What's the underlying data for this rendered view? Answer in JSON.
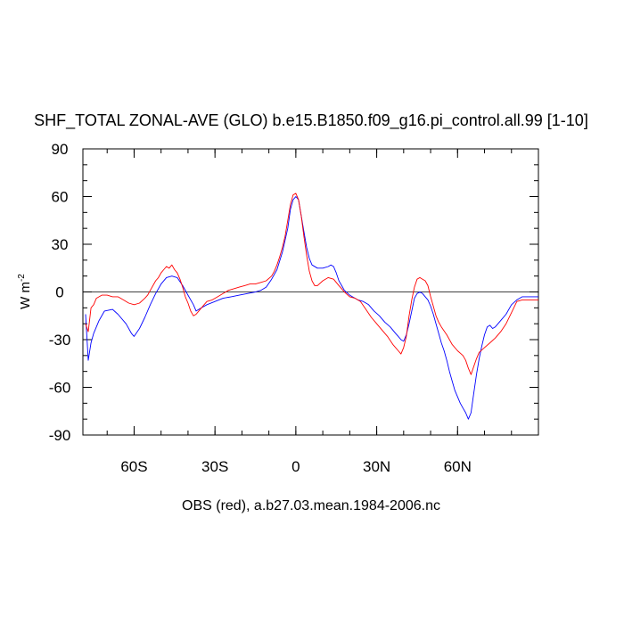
{
  "chart_data": {
    "type": "line",
    "title": "SHF_TOTAL ZONAL-AVE (GLO) b.e15.B1850.f09_g16.pi_control.all.99 [1-10]",
    "subtitle": "OBS (red), a.b27.03.mean.1984-2006.nc",
    "ylabel": "W m",
    "ylabel_sup": "-2",
    "xlabel": "",
    "xlim": [
      -79,
      90
    ],
    "ylim": [
      -90,
      90
    ],
    "x_ticks": [
      {
        "value": -60,
        "label": "60S"
      },
      {
        "value": -30,
        "label": "30S"
      },
      {
        "value": 0,
        "label": "0"
      },
      {
        "value": 30,
        "label": "30N"
      },
      {
        "value": 60,
        "label": "60N"
      }
    ],
    "y_ticks": [
      {
        "value": 90,
        "label": "90"
      },
      {
        "value": 60,
        "label": "60"
      },
      {
        "value": 30,
        "label": "30"
      },
      {
        "value": 0,
        "label": "0"
      },
      {
        "value": -30,
        "label": "-30"
      },
      {
        "value": -60,
        "label": "-60"
      },
      {
        "value": -90,
        "label": "-90"
      }
    ],
    "zero_line": true,
    "grid": false,
    "series": [
      {
        "color": "#0000ff",
        "points": [
          [
            -78,
            -14
          ],
          [
            -77,
            -43
          ],
          [
            -76,
            -32
          ],
          [
            -75,
            -26
          ],
          [
            -73,
            -18
          ],
          [
            -71,
            -12
          ],
          [
            -68,
            -11
          ],
          [
            -66,
            -14
          ],
          [
            -63,
            -20
          ],
          [
            -61,
            -26
          ],
          [
            -60,
            -28
          ],
          [
            -58,
            -23
          ],
          [
            -56,
            -16
          ],
          [
            -54,
            -8
          ],
          [
            -52,
            -1
          ],
          [
            -50,
            5
          ],
          [
            -48,
            9
          ],
          [
            -46,
            10
          ],
          [
            -44,
            9
          ],
          [
            -42,
            4
          ],
          [
            -40,
            -2
          ],
          [
            -38,
            -8
          ],
          [
            -37,
            -12
          ],
          [
            -35,
            -10
          ],
          [
            -33,
            -8
          ],
          [
            -30,
            -6
          ],
          [
            -27,
            -4
          ],
          [
            -24,
            -3
          ],
          [
            -21,
            -2
          ],
          [
            -18,
            -1
          ],
          [
            -15,
            0
          ],
          [
            -13,
            1
          ],
          [
            -11,
            3
          ],
          [
            -9,
            8
          ],
          [
            -7,
            14
          ],
          [
            -5,
            25
          ],
          [
            -3,
            40
          ],
          [
            -2,
            52
          ],
          [
            -1,
            58
          ],
          [
            0,
            60
          ],
          [
            1,
            58
          ],
          [
            2,
            48
          ],
          [
            3,
            38
          ],
          [
            4,
            28
          ],
          [
            5,
            21
          ],
          [
            6,
            17
          ],
          [
            8,
            15
          ],
          [
            10,
            15
          ],
          [
            12,
            16
          ],
          [
            13,
            17
          ],
          [
            14,
            16
          ],
          [
            15,
            12
          ],
          [
            16,
            7
          ],
          [
            17,
            4
          ],
          [
            18,
            1
          ],
          [
            20,
            -2
          ],
          [
            23,
            -5
          ],
          [
            25,
            -6
          ],
          [
            27,
            -8
          ],
          [
            29,
            -12
          ],
          [
            31,
            -15
          ],
          [
            33,
            -19
          ],
          [
            35,
            -22
          ],
          [
            37,
            -26
          ],
          [
            38,
            -28
          ],
          [
            39,
            -30
          ],
          [
            40,
            -31
          ],
          [
            41,
            -27
          ],
          [
            42,
            -20
          ],
          [
            43,
            -12
          ],
          [
            44,
            -4
          ],
          [
            45,
            -1
          ],
          [
            46,
            0
          ],
          [
            47,
            -1
          ],
          [
            48,
            -3
          ],
          [
            49,
            -5
          ],
          [
            50,
            -9
          ],
          [
            51,
            -14
          ],
          [
            52,
            -20
          ],
          [
            53,
            -26
          ],
          [
            54,
            -32
          ],
          [
            55,
            -37
          ],
          [
            56,
            -43
          ],
          [
            57,
            -50
          ],
          [
            58,
            -56
          ],
          [
            59,
            -62
          ],
          [
            60,
            -66
          ],
          [
            61,
            -70
          ],
          [
            62,
            -73
          ],
          [
            63,
            -76
          ],
          [
            64,
            -80
          ],
          [
            65,
            -76
          ],
          [
            66,
            -64
          ],
          [
            67,
            -52
          ],
          [
            68,
            -42
          ],
          [
            69,
            -34
          ],
          [
            70,
            -27
          ],
          [
            71,
            -22
          ],
          [
            72,
            -21
          ],
          [
            73,
            -23
          ],
          [
            74,
            -22
          ],
          [
            76,
            -18
          ],
          [
            78,
            -14
          ],
          [
            80,
            -8
          ],
          [
            82,
            -5
          ],
          [
            84,
            -3
          ],
          [
            86,
            -3
          ],
          [
            88,
            -3
          ],
          [
            90,
            -3
          ]
        ]
      },
      {
        "color": "#ff0000",
        "points": [
          [
            -78,
            -20
          ],
          [
            -77,
            -25
          ],
          [
            -76,
            -10
          ],
          [
            -75,
            -8
          ],
          [
            -74,
            -4
          ],
          [
            -72,
            -2
          ],
          [
            -70,
            -2
          ],
          [
            -68,
            -3
          ],
          [
            -66,
            -3
          ],
          [
            -64,
            -5
          ],
          [
            -62,
            -7
          ],
          [
            -60,
            -8
          ],
          [
            -58,
            -7
          ],
          [
            -56,
            -4
          ],
          [
            -55,
            -2
          ],
          [
            -54,
            1
          ],
          [
            -53,
            4
          ],
          [
            -52,
            7
          ],
          [
            -51,
            9
          ],
          [
            -50,
            12
          ],
          [
            -49,
            14
          ],
          [
            -48,
            16
          ],
          [
            -47,
            15
          ],
          [
            -46,
            17
          ],
          [
            -45,
            14
          ],
          [
            -44,
            12
          ],
          [
            -43,
            8
          ],
          [
            -42,
            3
          ],
          [
            -41,
            -3
          ],
          [
            -40,
            -7
          ],
          [
            -39,
            -12
          ],
          [
            -38,
            -15
          ],
          [
            -37,
            -14
          ],
          [
            -36,
            -12
          ],
          [
            -35,
            -10
          ],
          [
            -33,
            -6
          ],
          [
            -31,
            -5
          ],
          [
            -29,
            -3
          ],
          [
            -27,
            -1
          ],
          [
            -25,
            1
          ],
          [
            -23,
            2
          ],
          [
            -21,
            3
          ],
          [
            -19,
            4
          ],
          [
            -17,
            5
          ],
          [
            -15,
            5
          ],
          [
            -13,
            6
          ],
          [
            -11,
            7
          ],
          [
            -9,
            10
          ],
          [
            -8,
            13
          ],
          [
            -7,
            17
          ],
          [
            -6,
            22
          ],
          [
            -5,
            28
          ],
          [
            -4,
            35
          ],
          [
            -3,
            45
          ],
          [
            -2,
            55
          ],
          [
            -1,
            61
          ],
          [
            0,
            62
          ],
          [
            1,
            58
          ],
          [
            2,
            48
          ],
          [
            3,
            35
          ],
          [
            4,
            23
          ],
          [
            5,
            13
          ],
          [
            6,
            7
          ],
          [
            7,
            4
          ],
          [
            8,
            4
          ],
          [
            10,
            7
          ],
          [
            12,
            9
          ],
          [
            14,
            8
          ],
          [
            15,
            6
          ],
          [
            16,
            4
          ],
          [
            17,
            2
          ],
          [
            18,
            0
          ],
          [
            20,
            -3
          ],
          [
            22,
            -4
          ],
          [
            24,
            -6
          ],
          [
            26,
            -11
          ],
          [
            28,
            -16
          ],
          [
            30,
            -20
          ],
          [
            32,
            -24
          ],
          [
            34,
            -28
          ],
          [
            36,
            -33
          ],
          [
            38,
            -37
          ],
          [
            39,
            -39
          ],
          [
            40,
            -35
          ],
          [
            41,
            -28
          ],
          [
            42,
            -15
          ],
          [
            43,
            -5
          ],
          [
            44,
            3
          ],
          [
            45,
            8
          ],
          [
            46,
            9
          ],
          [
            47,
            8
          ],
          [
            48,
            7
          ],
          [
            49,
            4
          ],
          [
            50,
            -3
          ],
          [
            51,
            -9
          ],
          [
            52,
            -15
          ],
          [
            53,
            -19
          ],
          [
            54,
            -22
          ],
          [
            56,
            -27
          ],
          [
            58,
            -33
          ],
          [
            60,
            -37
          ],
          [
            62,
            -40
          ],
          [
            63,
            -43
          ],
          [
            64,
            -48
          ],
          [
            65,
            -52
          ],
          [
            66,
            -47
          ],
          [
            67,
            -42
          ],
          [
            68,
            -38
          ],
          [
            70,
            -35
          ],
          [
            72,
            -32
          ],
          [
            74,
            -29
          ],
          [
            76,
            -25
          ],
          [
            78,
            -20
          ],
          [
            80,
            -13
          ],
          [
            82,
            -6
          ],
          [
            84,
            -5
          ],
          [
            86,
            -5
          ],
          [
            88,
            -5
          ],
          [
            90,
            -5
          ]
        ]
      }
    ]
  }
}
